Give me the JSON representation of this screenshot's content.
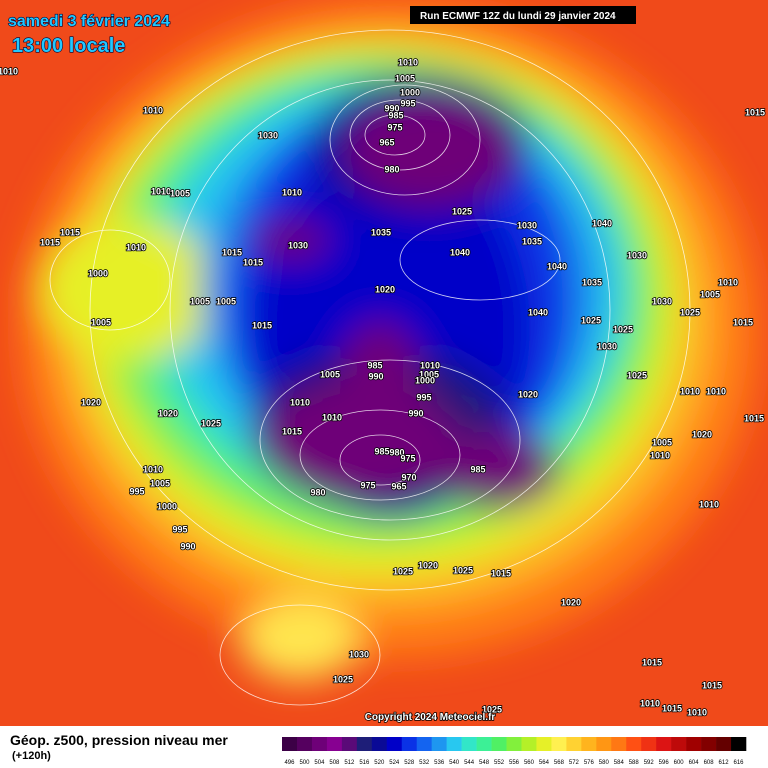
{
  "header": {
    "date": "samedi 3 février 2024",
    "time": "13:00 locale",
    "run": "Run ECMWF 12Z du lundi 29 janvier 2024"
  },
  "map": {
    "copyright": "Copyright 2024 Meteociel.fr",
    "isobar_labels": [
      1010,
      1010,
      1005,
      1000,
      995,
      990,
      985,
      975,
      965,
      980,
      1030,
      1010,
      1010,
      1005,
      1010,
      1015,
      1015,
      1010,
      1000,
      1005,
      1005,
      1005,
      1015,
      1030,
      1015,
      1015,
      1035,
      1025,
      1030,
      1035,
      1040,
      1040,
      1040,
      1030,
      1035,
      1020,
      1040,
      1025,
      1030,
      1005,
      1010,
      1025,
      1015,
      1025,
      1030,
      1025,
      985,
      990,
      1010,
      1005,
      1000,
      1005,
      995,
      1020,
      1010,
      1010,
      990,
      1010,
      1010,
      1020,
      1020,
      1025,
      1015,
      1015,
      1020,
      985,
      980,
      975,
      970,
      965,
      975,
      980,
      985,
      1005,
      1010,
      1010,
      1005,
      995,
      1000,
      995,
      990,
      1010,
      1025,
      1020,
      1025,
      1015,
      1020,
      1030,
      1025,
      1015,
      1015,
      1010,
      1015,
      1010,
      1025,
      1015
    ]
  },
  "legend": {
    "title": "Géop. z500, pression niveau mer",
    "lead": "(+120h)",
    "values": [
      496,
      500,
      504,
      508,
      512,
      516,
      520,
      524,
      528,
      532,
      536,
      540,
      544,
      548,
      552,
      556,
      560,
      564,
      568,
      572,
      576,
      580,
      584,
      588,
      592,
      596,
      600,
      604,
      608,
      612,
      616
    ],
    "colors": [
      "#3c0046",
      "#55005f",
      "#6e0078",
      "#870091",
      "#5a0a78",
      "#1e1e78",
      "#0a0a96",
      "#0000c8",
      "#0a32e6",
      "#1464f0",
      "#1e96f0",
      "#28c8f0",
      "#32e6c8",
      "#3cf096",
      "#50f064",
      "#82f03c",
      "#b4f028",
      "#e6f028",
      "#fff050",
      "#ffd232",
      "#ffb41e",
      "#ff9614",
      "#ff7814",
      "#ff5014",
      "#f03214",
      "#dc1414",
      "#be0a0a",
      "#a00000",
      "#820000",
      "#640000",
      "#000000"
    ]
  }
}
